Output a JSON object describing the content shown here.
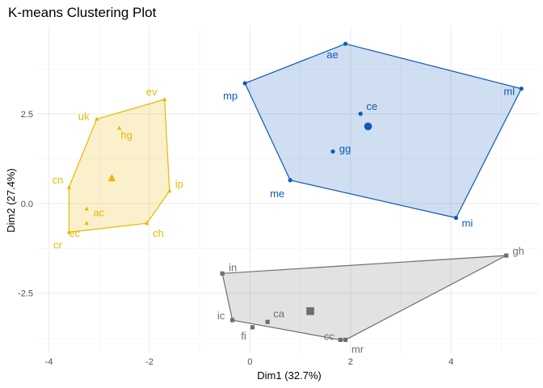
{
  "chart_data": {
    "type": "scatter",
    "title": "K-means Clustering Plot",
    "xlabel": "Dim1 (32.7%)",
    "ylabel": "Dim2 (27.4%)",
    "xlim": [
      -4.25,
      5.75
    ],
    "ylim": [
      -4.15,
      4.95
    ],
    "x_ticks": [
      -4,
      -2,
      0,
      2,
      4
    ],
    "x_tick_labels": [
      "-4",
      "-2",
      "0",
      "2",
      "4"
    ],
    "y_ticks": [
      -2.5,
      0,
      2.5
    ],
    "y_tick_labels": [
      "-2.5",
      "0.0",
      "2.5"
    ],
    "grid": true,
    "legend": "none",
    "clusters": [
      {
        "color": "#E7B800",
        "marker": "triangle",
        "centroid": [
          -2.75,
          0.7
        ],
        "hull": [
          [
            -3.6,
            -0.8
          ],
          [
            -2.05,
            -0.55
          ],
          [
            -1.6,
            0.35
          ],
          [
            -1.7,
            2.9
          ],
          [
            -3.05,
            2.35
          ],
          [
            -3.6,
            0.45
          ]
        ],
        "points": [
          {
            "label": "uk",
            "x": -3.05,
            "y": 2.35
          },
          {
            "label": "ev",
            "x": -1.7,
            "y": 2.9
          },
          {
            "label": "hg",
            "x": -2.6,
            "y": 2.1
          },
          {
            "label": "cn",
            "x": -3.6,
            "y": 0.45
          },
          {
            "label": "ip",
            "x": -1.6,
            "y": 0.35
          },
          {
            "label": "ac",
            "x": -3.25,
            "y": -0.15
          },
          {
            "label": "ch",
            "x": -2.05,
            "y": -0.55
          },
          {
            "label": "ec",
            "x": -3.25,
            "y": -0.55
          },
          {
            "label": "cr",
            "x": -3.6,
            "y": -0.8
          }
        ]
      },
      {
        "color": "#0E5BB6",
        "marker": "circle",
        "centroid": [
          2.35,
          2.15
        ],
        "hull": [
          [
            -0.1,
            3.35
          ],
          [
            1.9,
            4.45
          ],
          [
            5.4,
            3.2
          ],
          [
            4.1,
            -0.4
          ],
          [
            0.8,
            0.65
          ]
        ],
        "points": [
          {
            "label": "ae",
            "x": 1.9,
            "y": 4.45
          },
          {
            "label": "mp",
            "x": -0.1,
            "y": 3.35
          },
          {
            "label": "ml",
            "x": 5.4,
            "y": 3.2
          },
          {
            "label": "ce",
            "x": 2.2,
            "y": 2.5
          },
          {
            "label": "gg",
            "x": 1.65,
            "y": 1.45
          },
          {
            "label": "me",
            "x": 0.8,
            "y": 0.65
          },
          {
            "label": "mi",
            "x": 4.1,
            "y": -0.4
          }
        ]
      },
      {
        "color": "#6E6E6E",
        "marker": "square",
        "centroid": [
          1.2,
          -3.0
        ],
        "hull": [
          [
            -0.55,
            -1.95
          ],
          [
            5.1,
            -1.45
          ],
          [
            1.9,
            -3.8
          ],
          [
            1.8,
            -3.8
          ],
          [
            -0.35,
            -3.25
          ]
        ],
        "points": [
          {
            "label": "in",
            "x": -0.55,
            "y": -1.95
          },
          {
            "label": "gh",
            "x": 5.1,
            "y": -1.45
          },
          {
            "label": "ca",
            "x": 0.35,
            "y": -3.3
          },
          {
            "label": "ic",
            "x": -0.35,
            "y": -3.25
          },
          {
            "label": "fi",
            "x": 0.05,
            "y": -3.45
          },
          {
            "label": "cc",
            "x": 1.8,
            "y": -3.8
          },
          {
            "label": "mr",
            "x": 1.9,
            "y": -3.8
          }
        ]
      }
    ]
  }
}
